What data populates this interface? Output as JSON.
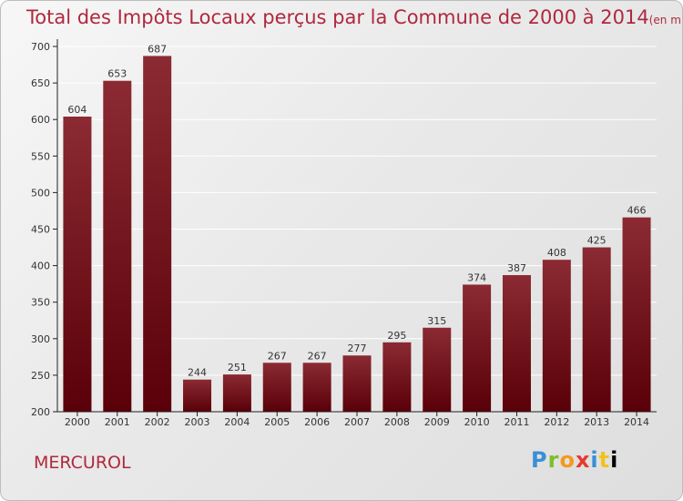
{
  "header": {
    "title": "Total des Impôts Locaux perçus par la Commune de 2000 à 2014",
    "unit": "(en milliers d'€)"
  },
  "commune": "MERCUROL",
  "logo": {
    "letters": [
      "P",
      "r",
      "o",
      "x",
      "i",
      "t",
      "i"
    ]
  },
  "chart_data": {
    "type": "bar",
    "title": "Total des Impôts Locaux perçus par la Commune de 2000 à 2014",
    "unit": "(en milliers d'€)",
    "categories": [
      "2000",
      "2001",
      "2002",
      "2003",
      "2004",
      "2005",
      "2006",
      "2007",
      "2008",
      "2009",
      "2010",
      "2011",
      "2012",
      "2013",
      "2014"
    ],
    "values": [
      604,
      653,
      687,
      244,
      251,
      267,
      267,
      277,
      295,
      315,
      374,
      387,
      408,
      425,
      466
    ],
    "ylim": [
      200,
      700
    ],
    "yticks": [
      200,
      250,
      300,
      350,
      400,
      450,
      500,
      550,
      600,
      650,
      700
    ],
    "grid": true,
    "colors": {
      "bar_top": "#8b2a33",
      "bar_bottom": "#5a0008",
      "grid": "#ffffff",
      "axis": "#222222"
    }
  }
}
